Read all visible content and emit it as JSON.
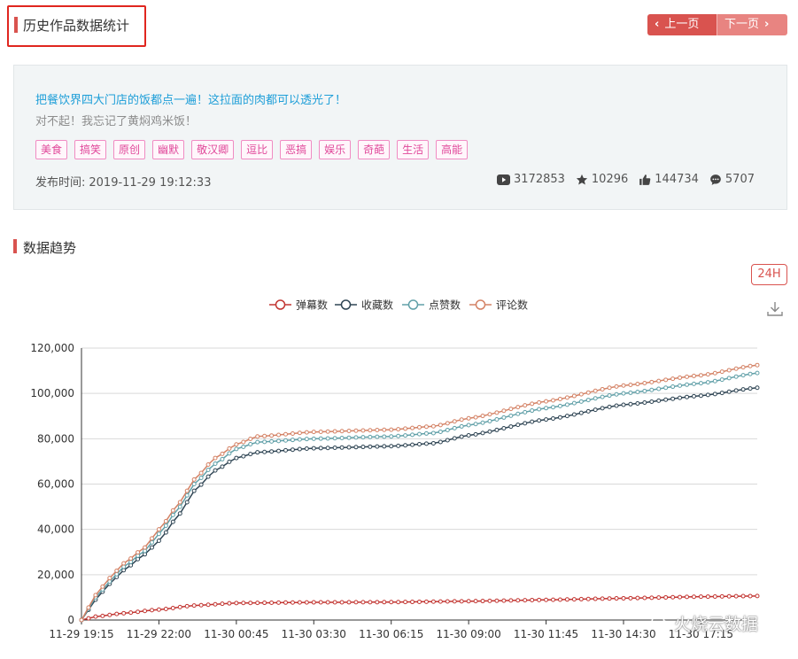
{
  "header": {
    "title": "历史作品数据统计",
    "prev_label": "上一页",
    "next_label": "下一页"
  },
  "video": {
    "title": "把餐饮界四大门店的饭都点一遍！这拉面的肉都可以透光了！",
    "subtitle": "对不起！我忘记了黄焖鸡米饭！",
    "tags": [
      "美食",
      "搞笑",
      "原创",
      "幽默",
      "敬汉卿",
      "逗比",
      "恶搞",
      "娱乐",
      "奇葩",
      "生活",
      "高能"
    ],
    "publish_label": "发布时间:",
    "publish_time": "2019-11-29 19:12:33",
    "stats": {
      "plays": "3172853",
      "favorites": "10296",
      "likes": "144734",
      "comments": "5707"
    }
  },
  "section": {
    "title": "数据趋势",
    "range_button": "24H"
  },
  "watermark": "火烧云数据",
  "chart_data": {
    "type": "line",
    "x": [
      "11-29 19:15",
      "11-29 22:00",
      "11-30 00:45",
      "11-30 03:30",
      "11-30 06:15",
      "11-30 09:00",
      "11-30 11:45",
      "11-30 14:30",
      "11-30 17:15"
    ],
    "x_hours": [
      0,
      2.75,
      5.5,
      8.25,
      11,
      13.75,
      16.5,
      19.25,
      22
    ],
    "ylim": [
      0,
      120000
    ],
    "yticks": [
      "0",
      "20,000",
      "40,000",
      "60,000",
      "80,000",
      "100,000",
      "120,000"
    ],
    "grid": true,
    "legend_position": "top-center",
    "series": [
      {
        "name": "弹幕数",
        "color": "#c23531",
        "points": [
          [
            0,
            0
          ],
          [
            0.5,
            1500
          ],
          [
            1.5,
            3000
          ],
          [
            2.75,
            4600
          ],
          [
            4,
            6400
          ],
          [
            5.5,
            7500
          ],
          [
            8.25,
            7800
          ],
          [
            11,
            7900
          ],
          [
            13.75,
            8300
          ],
          [
            16.5,
            8900
          ],
          [
            19.25,
            9600
          ],
          [
            22,
            10300
          ],
          [
            24,
            10600
          ]
        ]
      },
      {
        "name": "收藏数",
        "color": "#2f4554",
        "points": [
          [
            0,
            0
          ],
          [
            0.5,
            9000
          ],
          [
            1,
            16000
          ],
          [
            1.5,
            22000
          ],
          [
            2.25,
            29000
          ],
          [
            2.75,
            35000
          ],
          [
            3.5,
            47000
          ],
          [
            4,
            57000
          ],
          [
            4.75,
            66000
          ],
          [
            5.5,
            71500
          ],
          [
            6.25,
            74000
          ],
          [
            8.25,
            75800
          ],
          [
            11,
            76700
          ],
          [
            12.5,
            78000
          ],
          [
            13.75,
            81500
          ],
          [
            16.5,
            88500
          ],
          [
            19.25,
            95000
          ],
          [
            22,
            99000
          ],
          [
            24,
            102500
          ]
        ]
      },
      {
        "name": "点赞数",
        "color": "#61a0a8",
        "points": [
          [
            0,
            0
          ],
          [
            0.5,
            10000
          ],
          [
            1,
            17000
          ],
          [
            1.5,
            23500
          ],
          [
            2.25,
            30500
          ],
          [
            2.75,
            38000
          ],
          [
            3.5,
            50000
          ],
          [
            4,
            60000
          ],
          [
            4.75,
            69000
          ],
          [
            5.5,
            75500
          ],
          [
            6.25,
            78500
          ],
          [
            8.25,
            80000
          ],
          [
            11,
            81000
          ],
          [
            12.5,
            82500
          ],
          [
            13.75,
            86000
          ],
          [
            16.5,
            93500
          ],
          [
            19.25,
            100000
          ],
          [
            22,
            104500
          ],
          [
            24,
            109000
          ]
        ]
      },
      {
        "name": "评论数",
        "color": "#d48265",
        "points": [
          [
            0,
            0
          ],
          [
            0.5,
            11000
          ],
          [
            1,
            18500
          ],
          [
            1.5,
            25000
          ],
          [
            2.25,
            32000
          ],
          [
            2.75,
            40000
          ],
          [
            3.5,
            52000
          ],
          [
            4,
            62000
          ],
          [
            4.75,
            71500
          ],
          [
            5.5,
            77500
          ],
          [
            6.25,
            81000
          ],
          [
            8.25,
            83000
          ],
          [
            11,
            84000
          ],
          [
            12.5,
            85500
          ],
          [
            13.75,
            89000
          ],
          [
            16.5,
            96500
          ],
          [
            19.25,
            103500
          ],
          [
            22,
            108000
          ],
          [
            24,
            112500
          ]
        ]
      }
    ]
  }
}
